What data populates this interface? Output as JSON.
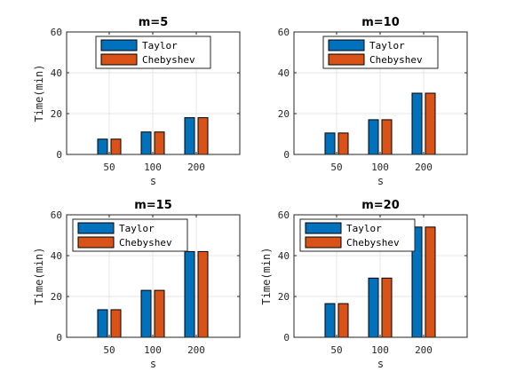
{
  "chart_data": [
    {
      "type": "bar",
      "title": "m=5",
      "xlabel": "s",
      "ylabel": "Time(min)",
      "categories": [
        "50",
        "100",
        "200"
      ],
      "ylim": [
        0,
        60
      ],
      "yticks": [
        "0",
        "20",
        "40",
        "60"
      ],
      "grid": true,
      "legend_position": "top-center",
      "series": [
        {
          "name": "Taylor",
          "color": "#0072BD",
          "values": [
            7.5,
            11,
            18
          ]
        },
        {
          "name": "Chebyshev",
          "color": "#D95319",
          "values": [
            7.5,
            11,
            18
          ]
        }
      ]
    },
    {
      "type": "bar",
      "title": "m=10",
      "xlabel": "s",
      "ylabel": "",
      "categories": [
        "50",
        "100",
        "200"
      ],
      "ylim": [
        0,
        60
      ],
      "yticks": [
        "0",
        "20",
        "40",
        "60"
      ],
      "grid": true,
      "legend_position": "top-center",
      "series": [
        {
          "name": "Taylor",
          "color": "#0072BD",
          "values": [
            10.5,
            17,
            30
          ]
        },
        {
          "name": "Chebyshev",
          "color": "#D95319",
          "values": [
            10.5,
            17,
            30
          ]
        }
      ]
    },
    {
      "type": "bar",
      "title": "m=15",
      "xlabel": "s",
      "ylabel": "Time(min)",
      "categories": [
        "50",
        "100",
        "200"
      ],
      "ylim": [
        0,
        60
      ],
      "yticks": [
        "0",
        "20",
        "40",
        "60"
      ],
      "grid": true,
      "legend_position": "top-left",
      "series": [
        {
          "name": "Taylor",
          "color": "#0072BD",
          "values": [
            13.5,
            23,
            42
          ]
        },
        {
          "name": "Chebyshev",
          "color": "#D95319",
          "values": [
            13.5,
            23,
            42
          ]
        }
      ]
    },
    {
      "type": "bar",
      "title": "m=20",
      "xlabel": "s",
      "ylabel": "Time(min)",
      "categories": [
        "50",
        "100",
        "200"
      ],
      "ylim": [
        0,
        60
      ],
      "yticks": [
        "0",
        "20",
        "40",
        "60"
      ],
      "grid": true,
      "legend_position": "top-left",
      "series": [
        {
          "name": "Taylor",
          "color": "#0072BD",
          "values": [
            16.5,
            29,
            54
          ]
        },
        {
          "name": "Chebyshev",
          "color": "#D95319",
          "values": [
            16.5,
            29,
            54
          ]
        }
      ]
    }
  ]
}
